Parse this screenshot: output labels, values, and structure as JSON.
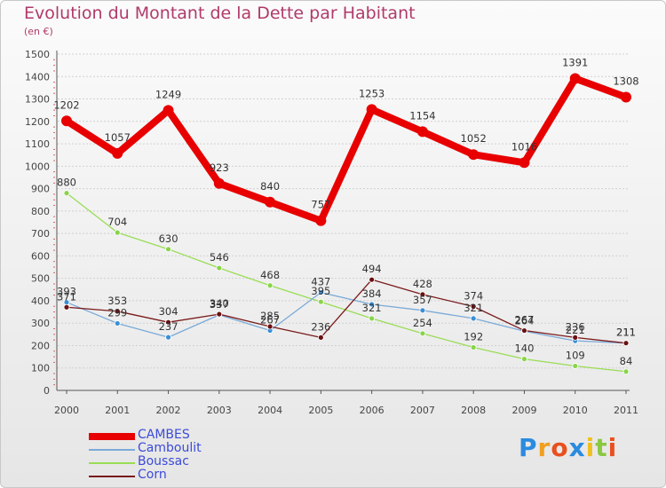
{
  "header": {
    "title": "Evolution du Montant de la Dette par Habitant",
    "unit": "(en €)"
  },
  "chart_data": {
    "type": "line",
    "title": "Evolution du Montant de la Dette par Habitant",
    "ylabel": "(en €)",
    "xlabel": "",
    "ylim": [
      0,
      1500
    ],
    "yticks": [
      "0",
      "100",
      "200",
      "300",
      "400",
      "500",
      "600",
      "700",
      "800",
      "900",
      "1000",
      "1100",
      "1200",
      "1300",
      "1400",
      "1500"
    ],
    "x": [
      "2000",
      "2001",
      "2002",
      "2003",
      "2004",
      "2005",
      "2006",
      "2007",
      "2008",
      "2009",
      "2010",
      "2011"
    ],
    "grid": "horizontal",
    "legend_position": "bottom-left",
    "series": [
      {
        "name": "CAMBES",
        "color": "#e80000",
        "marker_color": "#e80000",
        "values": [
          1202,
          1057,
          1249,
          923,
          840,
          757,
          1253,
          1154,
          1052,
          1016,
          1391,
          1308
        ],
        "labels": [
          "1202",
          "1057",
          "1249",
          "923",
          "840",
          "757",
          "1253",
          "1154",
          "1052",
          "1016",
          "1391",
          "1308"
        ]
      },
      {
        "name": "Camboulit",
        "color": "#7aaad8",
        "marker_color": "#3a8fd6",
        "values": [
          393,
          299,
          237,
          337,
          267,
          437,
          384,
          357,
          321,
          264,
          221,
          211
        ],
        "labels": [
          "393",
          "299",
          "237",
          "337",
          "267",
          "437",
          "384",
          "357",
          "321",
          "264",
          "221",
          "211"
        ]
      },
      {
        "name": "Boussac",
        "color": "#99dd55",
        "marker_color": "#88d44a",
        "values": [
          880,
          704,
          630,
          546,
          468,
          395,
          321,
          254,
          192,
          140,
          109,
          84
        ],
        "labels": [
          "880",
          "704",
          "630",
          "546",
          "468",
          "395",
          "321",
          "254",
          "192",
          "140",
          "109",
          "84"
        ]
      },
      {
        "name": "Corn",
        "color": "#7a1a1a",
        "marker_color": "#6a1010",
        "values": [
          371,
          353,
          304,
          340,
          285,
          236,
          494,
          428,
          374,
          267,
          236,
          211
        ],
        "labels": [
          "371",
          "353",
          "304",
          "340",
          "285",
          "236",
          "494",
          "428",
          "374",
          "267",
          "236",
          "211"
        ]
      }
    ]
  },
  "legend": {
    "items": [
      {
        "label": "CAMBES",
        "color": "#e80000"
      },
      {
        "label": "Camboulit",
        "color": "#7aaad8"
      },
      {
        "label": "Boussac",
        "color": "#99dd55"
      },
      {
        "label": "Corn",
        "color": "#7a1a1a"
      }
    ]
  },
  "logo": {
    "text": "Proxiti",
    "letters": [
      {
        "ch": "P",
        "color": "#2a8be0"
      },
      {
        "ch": "r",
        "color": "#f0a020"
      },
      {
        "ch": "o",
        "color": "#e85020"
      },
      {
        "ch": "x",
        "color": "#2a8be0"
      },
      {
        "ch": "i",
        "color": "#f0c020"
      },
      {
        "ch": "t",
        "color": "#8ac840"
      },
      {
        "ch": "i",
        "color": "#e85020"
      }
    ]
  }
}
